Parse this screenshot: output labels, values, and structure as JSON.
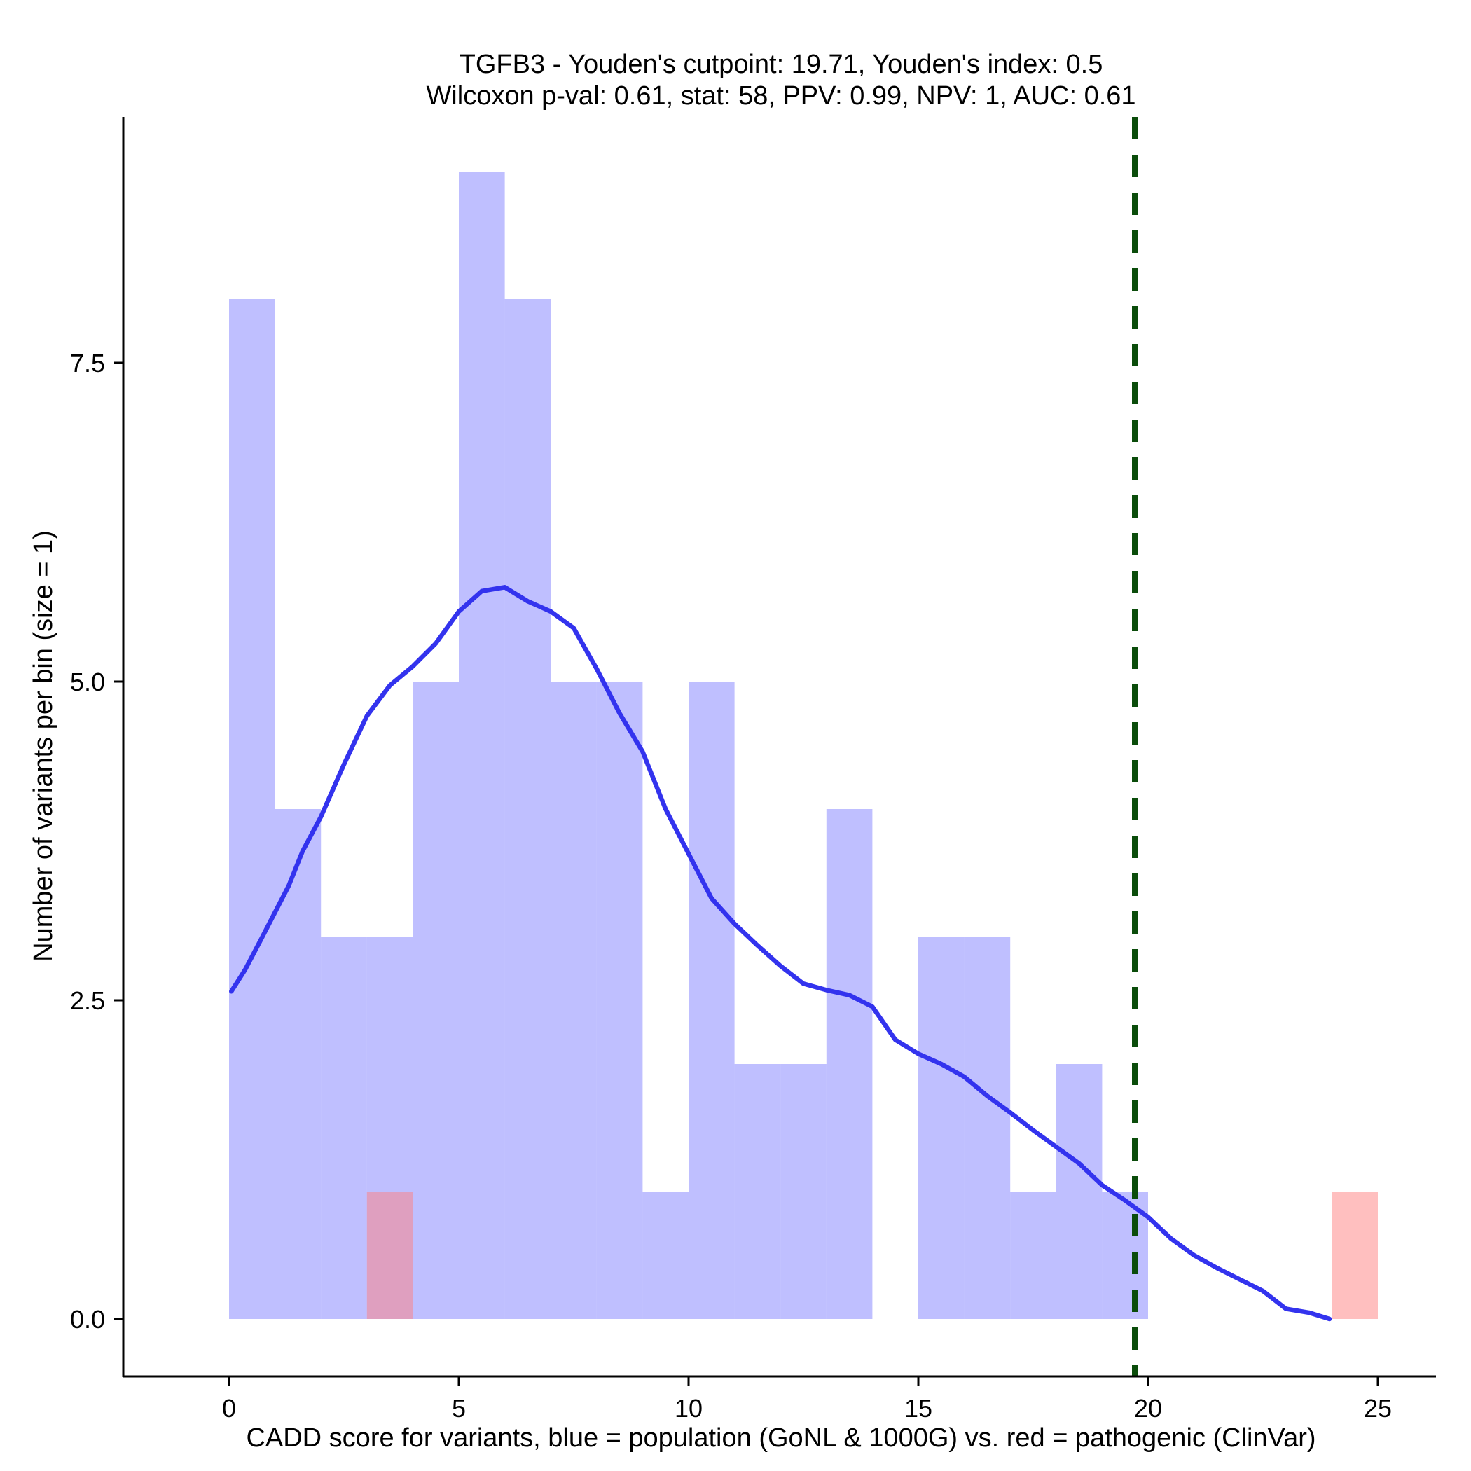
{
  "chart_data": {
    "type": "histogram",
    "title_line1": "TGFB3 - Youden's cutpoint: 19.71, Youden's index: 0.5",
    "title_line2": "Wilcoxon p-val: 0.61, stat: 58, PPV: 0.99, NPV: 1, AUC: 0.61",
    "xlabel": "CADD score for variants, blue = population (GoNL & 1000G) vs. red = pathogenic (ClinVar)",
    "ylabel": "Number of variants per bin (size = 1)",
    "xlim": [
      -2.3,
      26.3
    ],
    "ylim": [
      -0.45,
      9.45
    ],
    "x_ticks": [
      0,
      5,
      10,
      15,
      20,
      25
    ],
    "x_tick_labels": [
      "0",
      "5",
      "10",
      "15",
      "20",
      "25"
    ],
    "y_ticks": [
      0,
      2.5,
      5,
      7.5
    ],
    "y_tick_labels": [
      "0.0",
      "2.5",
      "5.0",
      "7.5"
    ],
    "bin_size": 1,
    "series": [
      {
        "name": "population (GoNL & 1000G)",
        "color": "#8080FF",
        "opacity": 0.5,
        "bin_starts": [
          0,
          1,
          2,
          3,
          4,
          5,
          6,
          7,
          8,
          9,
          10,
          11,
          12,
          13,
          14,
          15,
          16,
          17,
          18,
          19
        ],
        "counts": [
          8,
          4,
          3,
          3,
          5,
          9,
          8,
          5,
          5,
          1,
          5,
          2,
          2,
          4,
          0,
          3,
          3,
          1,
          2,
          1
        ]
      },
      {
        "name": "pathogenic (ClinVar)",
        "color": "#FF8080",
        "opacity": 0.5,
        "bin_starts": [
          3,
          24
        ],
        "counts": [
          1,
          1
        ]
      }
    ],
    "density_curve": {
      "color": "#3333EE",
      "points": [
        [
          0.05,
          2.57
        ],
        [
          0.35,
          2.74
        ],
        [
          0.7,
          2.98
        ],
        [
          1.3,
          3.4
        ],
        [
          1.6,
          3.67
        ],
        [
          2.0,
          3.94
        ],
        [
          2.5,
          4.35
        ],
        [
          3.0,
          4.73
        ],
        [
          3.5,
          4.97
        ],
        [
          4.0,
          5.12
        ],
        [
          4.5,
          5.3
        ],
        [
          5.0,
          5.55
        ],
        [
          5.5,
          5.71
        ],
        [
          6.0,
          5.74
        ],
        [
          6.5,
          5.63
        ],
        [
          7.0,
          5.55
        ],
        [
          7.5,
          5.42
        ],
        [
          8.0,
          5.1
        ],
        [
          8.5,
          4.75
        ],
        [
          9.0,
          4.45
        ],
        [
          9.5,
          4.0
        ],
        [
          10.0,
          3.65
        ],
        [
          10.5,
          3.3
        ],
        [
          11.0,
          3.1
        ],
        [
          11.5,
          2.93
        ],
        [
          12.0,
          2.77
        ],
        [
          12.5,
          2.63
        ],
        [
          13.0,
          2.58
        ],
        [
          13.5,
          2.54
        ],
        [
          14.0,
          2.45
        ],
        [
          14.5,
          2.19
        ],
        [
          15.0,
          2.08
        ],
        [
          15.5,
          2.0
        ],
        [
          16.0,
          1.9
        ],
        [
          16.5,
          1.75
        ],
        [
          17.0,
          1.62
        ],
        [
          17.5,
          1.48
        ],
        [
          18.0,
          1.35
        ],
        [
          18.5,
          1.22
        ],
        [
          19.0,
          1.05
        ],
        [
          19.5,
          0.93
        ],
        [
          20.0,
          0.8
        ],
        [
          20.5,
          0.63
        ],
        [
          21.0,
          0.5
        ],
        [
          21.5,
          0.4
        ],
        [
          22.0,
          0.31
        ],
        [
          22.5,
          0.22
        ],
        [
          23.0,
          0.08
        ],
        [
          23.5,
          0.05
        ],
        [
          23.95,
          0.0
        ]
      ]
    },
    "cutpoint": {
      "x": 19.71,
      "color": "#0B4D0B",
      "style": "dashed"
    }
  }
}
